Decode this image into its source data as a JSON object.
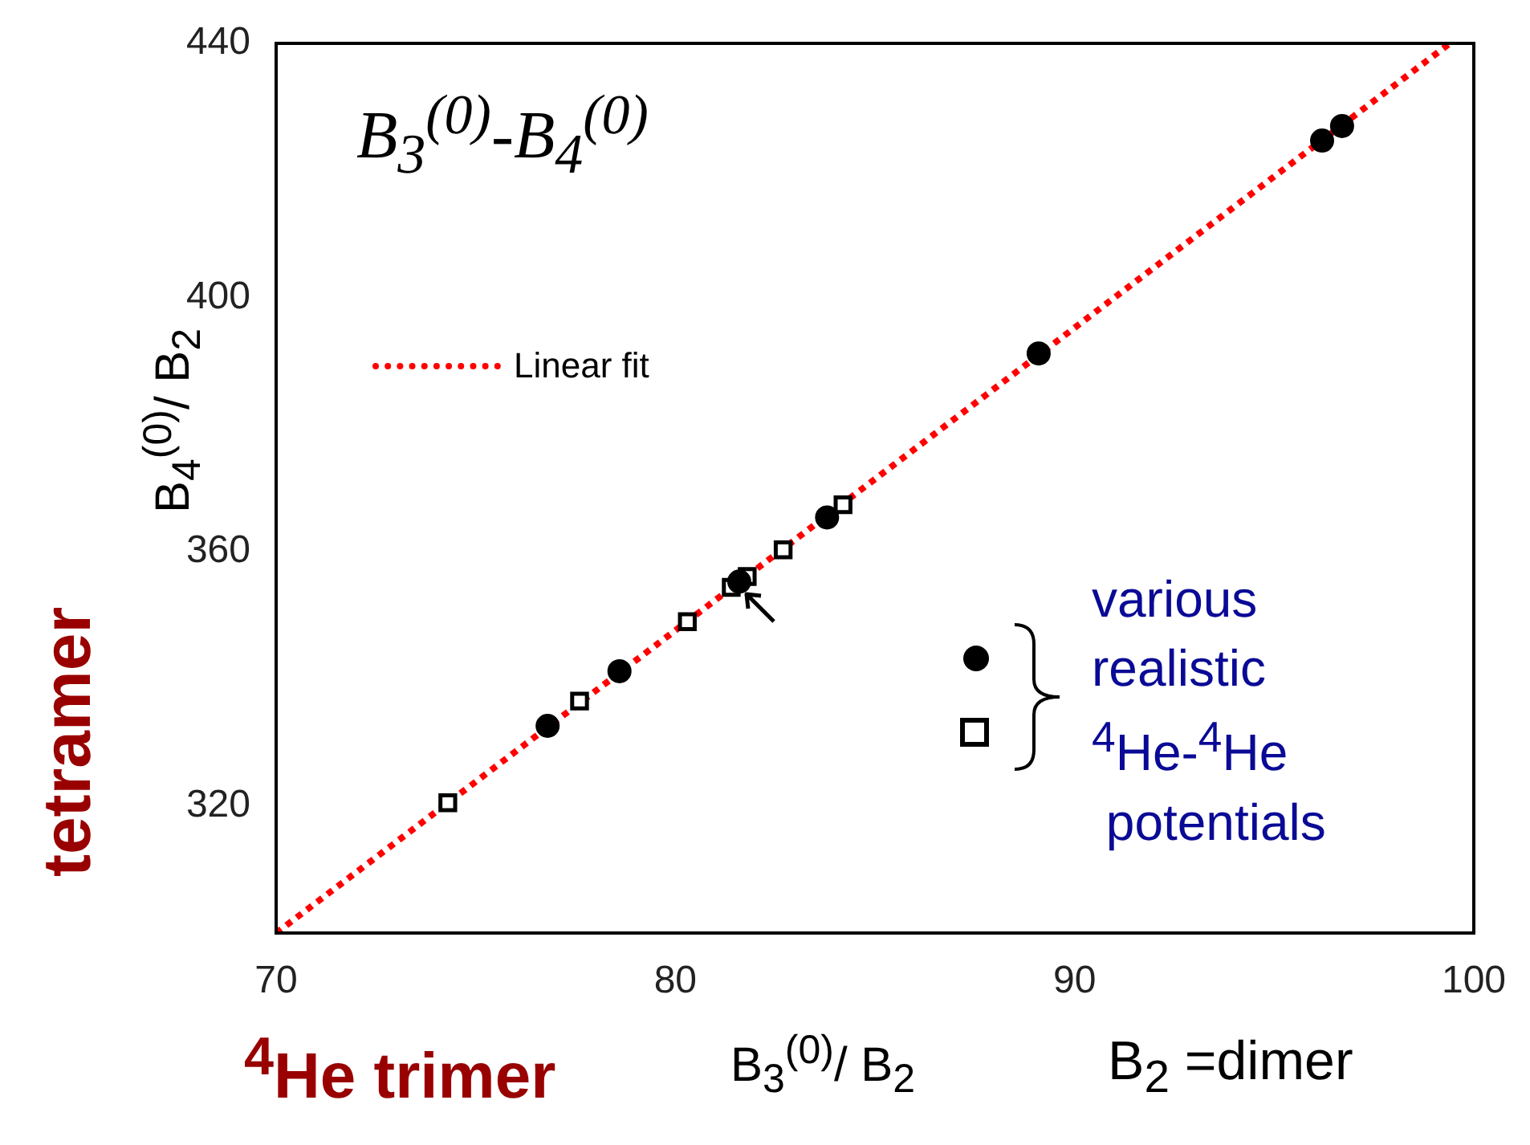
{
  "chart_data": {
    "type": "scatter",
    "title": "B$_{3}$$^{(0)}$-B$_{4}$$^{(0)}$",
    "xlabel": "B$_{3}$$^{(0)}$/ B$_{2}$",
    "ylabel": "B$_{4}$$^{(0)}$/ B$_{2}$",
    "annotations": [
      "tetramer",
      "$^{4}$He trimer",
      "B$_{2}$ =dimer",
      "various\nrealistic\n$^{4}$He-$^{4}$He\n potentials"
    ],
    "xlim": [
      70,
      100
    ],
    "xticks": [
      70,
      80,
      90,
      100
    ],
    "ylim": [
      300,
      440
    ],
    "yticks": [
      320,
      360,
      400,
      440
    ],
    "legend": "top left",
    "series": [
      {
        "type": "scatter",
        "color": "#000000",
        "marker": "circle",
        "x": [
          76.8,
          78.6,
          81.6,
          83.8,
          89.1,
          96.2,
          96.7
        ],
        "values": [
          332.6,
          341.2,
          355.3,
          365.4,
          391.2,
          424.7,
          427.0
        ]
      },
      {
        "type": "scatter",
        "color": "#000000",
        "marker": "square",
        "x": [
          74.3,
          77.6,
          80.3,
          81.4,
          81.8,
          82.7,
          84.2
        ],
        "values": [
          320.5,
          336.5,
          349.0,
          354.4,
          356.1,
          360.3,
          367.4
        ]
      },
      {
        "type": "line",
        "name": "Linear fit",
        "color": "#ff0000",
        "line_style": "dotted",
        "marker": "none",
        "x": [
          70,
          99.4
        ],
        "values": [
          300,
          440
        ]
      }
    ]
  }
}
